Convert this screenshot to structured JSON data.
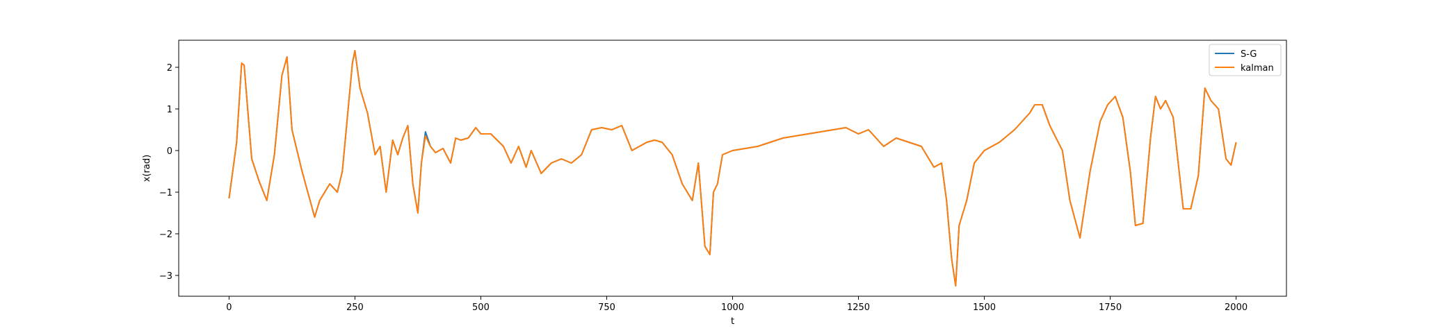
{
  "chart_data": {
    "type": "line",
    "title": "",
    "xlabel": "t",
    "ylabel": "x(rad)",
    "xlim": [
      -100,
      2100
    ],
    "ylim": [
      -3.5,
      2.65
    ],
    "xticks": [
      0,
      250,
      500,
      750,
      1000,
      1250,
      1500,
      1750,
      2000
    ],
    "yticks": [
      -3,
      -2,
      -1,
      0,
      1,
      2
    ],
    "grid": false,
    "legend": "top-right",
    "series": [
      {
        "name": "S-G",
        "color": "#1f77b4",
        "x": [
          0,
          15,
          25,
          30,
          45,
          60,
          75,
          90,
          105,
          115,
          125,
          145,
          170,
          180,
          200,
          215,
          225,
          245,
          250,
          260,
          275,
          290,
          300,
          312,
          325,
          335,
          345,
          355,
          365,
          375,
          382,
          390,
          400,
          410,
          425,
          440,
          450,
          460,
          475,
          490,
          500,
          520,
          545,
          560,
          575,
          590,
          600,
          620,
          640,
          660,
          680,
          700,
          720,
          740,
          760,
          780,
          800,
          815,
          830,
          845,
          860,
          880,
          900,
          920,
          932,
          945,
          955,
          962,
          970,
          980,
          1000,
          1050,
          1100,
          1150,
          1200,
          1225,
          1250,
          1270,
          1300,
          1325,
          1350,
          1375,
          1400,
          1415,
          1425,
          1435,
          1443,
          1450,
          1465,
          1480,
          1500,
          1530,
          1560,
          1590,
          1600,
          1615,
          1630,
          1655,
          1670,
          1690,
          1710,
          1730,
          1745,
          1760,
          1775,
          1790,
          1800,
          1815,
          1830,
          1840,
          1850,
          1860,
          1875,
          1895,
          1910,
          1925,
          1938,
          1950,
          1965,
          1980,
          1990,
          2000
        ],
        "y": [
          -1.15,
          0.2,
          2.1,
          2.05,
          -0.2,
          -0.75,
          -1.2,
          -0.1,
          1.8,
          2.25,
          0.5,
          -0.5,
          -1.6,
          -1.2,
          -0.8,
          -1.0,
          -0.5,
          2.1,
          2.4,
          1.5,
          0.9,
          -0.1,
          0.1,
          -1.0,
          0.25,
          -0.1,
          0.3,
          0.6,
          -0.8,
          -1.5,
          -0.3,
          0.45,
          0.1,
          -0.05,
          0.05,
          -0.3,
          0.3,
          0.25,
          0.3,
          0.55,
          0.4,
          0.4,
          0.1,
          -0.3,
          0.1,
          -0.4,
          0.0,
          -0.55,
          -0.3,
          -0.2,
          -0.3,
          -0.1,
          0.5,
          0.55,
          0.5,
          0.6,
          0.0,
          0.1,
          0.2,
          0.25,
          0.2,
          -0.1,
          -0.8,
          -1.2,
          -0.3,
          -2.3,
          -2.5,
          -1.0,
          -0.8,
          -0.1,
          0.0,
          0.1,
          0.3,
          0.4,
          0.5,
          0.55,
          0.4,
          0.5,
          0.1,
          0.3,
          0.2,
          0.1,
          -0.4,
          -0.3,
          -1.2,
          -2.6,
          -3.25,
          -1.8,
          -1.2,
          -0.3,
          0.0,
          0.2,
          0.5,
          0.9,
          1.1,
          1.1,
          0.6,
          0.0,
          -1.2,
          -2.1,
          -0.5,
          0.7,
          1.1,
          1.3,
          0.8,
          -0.5,
          -1.8,
          -1.75,
          0.3,
          1.3,
          1.0,
          1.2,
          0.8,
          -1.4,
          -1.4,
          -0.6,
          1.5,
          1.2,
          1.0,
          -0.2,
          -0.35,
          0.2
        ]
      },
      {
        "name": "kalman",
        "color": "#ff7f0e",
        "x": [
          0,
          15,
          25,
          30,
          45,
          60,
          75,
          90,
          105,
          115,
          125,
          145,
          170,
          180,
          200,
          215,
          225,
          245,
          250,
          260,
          275,
          290,
          300,
          312,
          325,
          335,
          345,
          355,
          365,
          375,
          382,
          390,
          400,
          410,
          425,
          440,
          450,
          460,
          475,
          490,
          500,
          520,
          545,
          560,
          575,
          590,
          600,
          620,
          640,
          660,
          680,
          700,
          720,
          740,
          760,
          780,
          800,
          815,
          830,
          845,
          860,
          880,
          900,
          920,
          932,
          945,
          955,
          962,
          970,
          980,
          1000,
          1050,
          1100,
          1150,
          1200,
          1225,
          1250,
          1270,
          1300,
          1325,
          1350,
          1375,
          1400,
          1415,
          1425,
          1435,
          1443,
          1450,
          1465,
          1480,
          1500,
          1530,
          1560,
          1590,
          1600,
          1615,
          1630,
          1655,
          1670,
          1690,
          1710,
          1730,
          1745,
          1760,
          1775,
          1790,
          1800,
          1815,
          1830,
          1840,
          1850,
          1860,
          1875,
          1895,
          1910,
          1925,
          1938,
          1950,
          1965,
          1980,
          1990,
          2000
        ],
        "y": [
          -1.15,
          0.2,
          2.1,
          2.05,
          -0.2,
          -0.75,
          -1.2,
          -0.1,
          1.8,
          2.25,
          0.5,
          -0.5,
          -1.6,
          -1.2,
          -0.8,
          -1.0,
          -0.5,
          2.1,
          2.4,
          1.5,
          0.9,
          -0.1,
          0.1,
          -1.0,
          0.25,
          -0.1,
          0.3,
          0.6,
          -0.8,
          -1.5,
          -0.3,
          0.35,
          0.1,
          -0.05,
          0.05,
          -0.3,
          0.3,
          0.25,
          0.3,
          0.55,
          0.4,
          0.4,
          0.1,
          -0.3,
          0.1,
          -0.4,
          0.0,
          -0.55,
          -0.3,
          -0.2,
          -0.3,
          -0.1,
          0.5,
          0.55,
          0.5,
          0.6,
          0.0,
          0.1,
          0.2,
          0.25,
          0.2,
          -0.1,
          -0.8,
          -1.2,
          -0.3,
          -2.3,
          -2.5,
          -1.0,
          -0.8,
          -0.1,
          0.0,
          0.1,
          0.3,
          0.4,
          0.5,
          0.55,
          0.4,
          0.5,
          0.1,
          0.3,
          0.2,
          0.1,
          -0.4,
          -0.3,
          -1.2,
          -2.6,
          -3.25,
          -1.8,
          -1.2,
          -0.3,
          0.0,
          0.2,
          0.5,
          0.9,
          1.1,
          1.1,
          0.6,
          0.0,
          -1.2,
          -2.1,
          -0.5,
          0.7,
          1.1,
          1.3,
          0.8,
          -0.5,
          -1.8,
          -1.75,
          0.3,
          1.3,
          1.0,
          1.2,
          0.8,
          -1.4,
          -1.4,
          -0.6,
          1.5,
          1.2,
          1.0,
          -0.2,
          -0.35,
          0.2
        ]
      }
    ]
  }
}
